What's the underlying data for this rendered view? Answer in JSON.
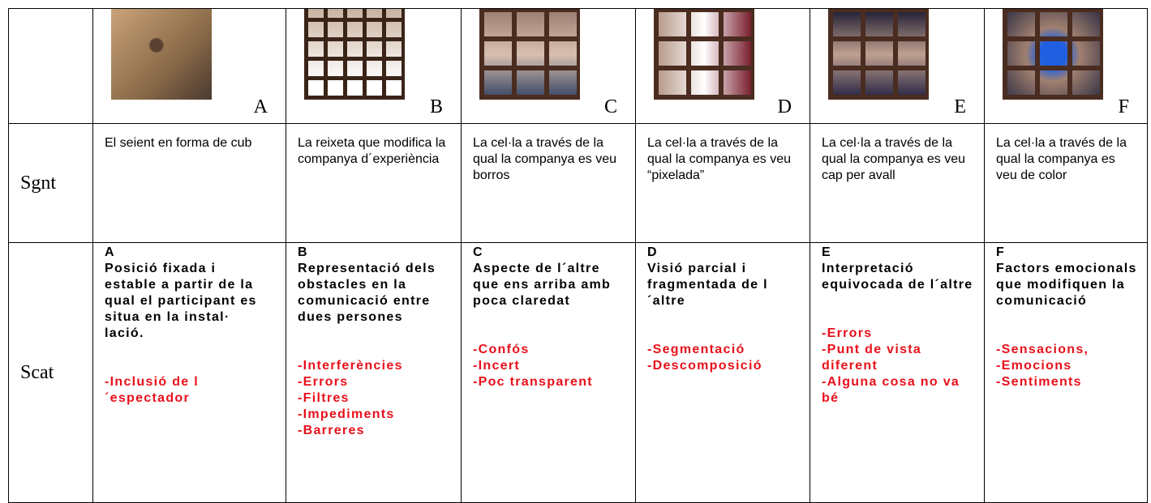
{
  "header_row": {
    "letters": [
      "A",
      "B",
      "C",
      "D",
      "E",
      "F"
    ]
  },
  "sgnt_row": {
    "label": "Sgnt",
    "cells": [
      "El seient en forma de cub",
      "La reixeta que modifica la companya d´experiència",
      "La cel·la a través de la qual la companya es veu borros",
      "La cel·la a través de la qual la companya es veu “pixelada”",
      "La cel·la a través de la qual la companya es veu cap per avall",
      "La cel·la a través de la qual la companya es veu de color"
    ]
  },
  "scat_row": {
    "label": "Scat",
    "cells": [
      {
        "letter": "A",
        "title": "Posició fixada i estable a partir de la qual el participant es situa en la instal· lació.",
        "items": [
          "-Inclusió de l´espectador"
        ]
      },
      {
        "letter": "B",
        "title": "Representació dels obstacles en la comunicació entre dues persones",
        "items": [
          "-Interferències",
          "-Errors",
          "-Filtres",
          "-Impediments",
          "-Barreres"
        ]
      },
      {
        "letter": "C",
        "title": "Aspecte de l´altre que ens arriba amb poca claredat",
        "items": [
          "-Confós",
          "-Incert",
          "-Poc transparent"
        ]
      },
      {
        "letter": "D",
        "title": "Visió parcial i fragmentada de l´altre",
        "items": [
          "-Segmentació",
          "-Descomposició"
        ]
      },
      {
        "letter": "E",
        "title": "Interpretació equivocada de l´altre",
        "items": [
          "-Errors",
          "-Punt de vista diferent",
          "-Alguna cosa no va bé"
        ]
      },
      {
        "letter": "F",
        "title": "Factors emocionals que modifiquen la comunicació",
        "items": [
          "-Sensacions,",
          "-Emocions",
          "-Sentiments"
        ]
      }
    ]
  }
}
